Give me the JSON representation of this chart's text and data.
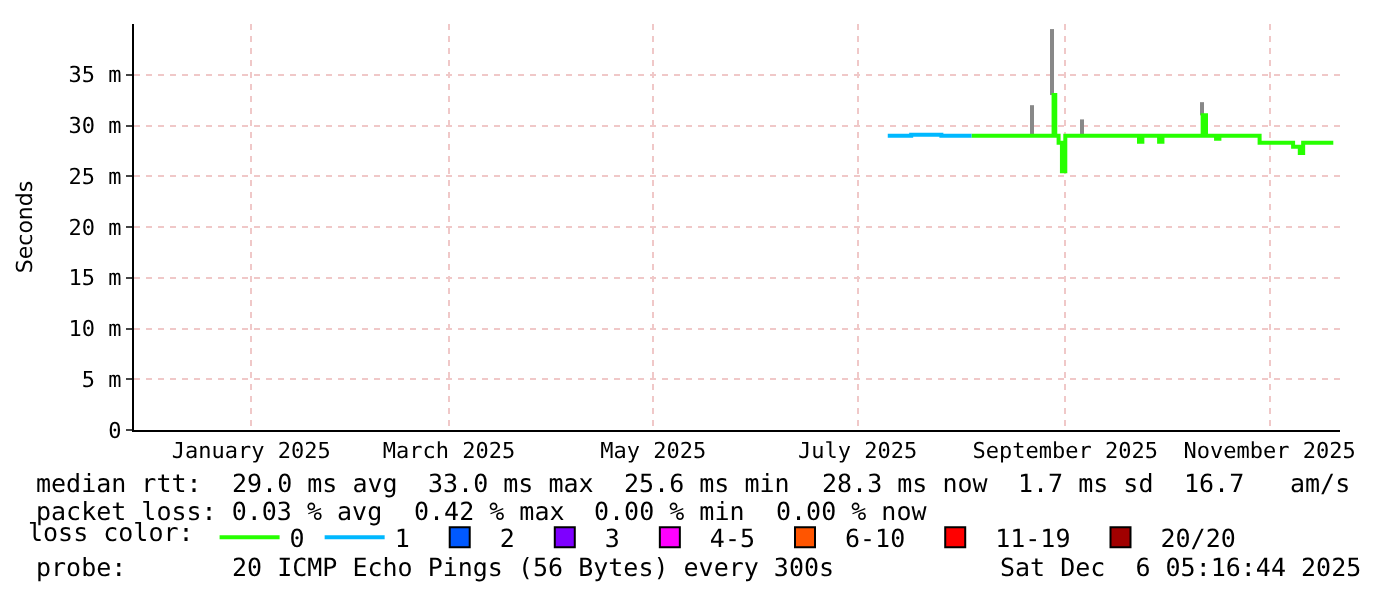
{
  "chart_data": {
    "type": "step",
    "ylabel": "Seconds",
    "xlim": [
      "2024-12-12",
      "2025-12-07"
    ],
    "xticks": [
      {
        "value": "2025-01-16",
        "label": "January 2025"
      },
      {
        "value": "2025-03-16",
        "label": "March 2025"
      },
      {
        "value": "2025-05-16",
        "label": "May 2025"
      },
      {
        "value": "2025-07-16",
        "label": "July 2025"
      },
      {
        "value": "2025-09-16",
        "label": "September 2025"
      },
      {
        "value": "2025-11-16",
        "label": "November 2025"
      }
    ],
    "ylim": [
      0,
      40
    ],
    "yticks": [
      0,
      {
        "value": 5,
        "label": "5 m"
      },
      {
        "value": 10,
        "label": "10 m"
      },
      {
        "value": 15,
        "label": "15 m"
      },
      {
        "value": 20,
        "label": "20 m"
      },
      {
        "value": 25,
        "label": "25 m"
      },
      {
        "value": 30,
        "label": "30 m"
      },
      {
        "value": 35,
        "label": "35 m"
      }
    ],
    "grid": true,
    "legend": "bottom",
    "legend_title": "loss color:",
    "series": [
      {
        "name": "0",
        "color": "#26ff00",
        "x": [
          "2025-08-19",
          "2025-09-12",
          "2025-09-12T12:00",
          "2025-09-13",
          "2025-09-14",
          "2025-09-15",
          "2025-09-16",
          "2025-10-08",
          "2025-10-09",
          "2025-10-14",
          "2025-10-15",
          "2025-10-27",
          "2025-10-28",
          "2025-10-31",
          "2025-11-01",
          "2025-11-13",
          "2025-11-23",
          "2025-11-25",
          "2025-11-26",
          "2025-12-05"
        ],
        "values": [
          29.0,
          29.0,
          33.0,
          29.0,
          28.3,
          25.5,
          29.0,
          28.4,
          29.0,
          28.4,
          29.0,
          31.0,
          29.0,
          28.7,
          29.0,
          28.3,
          27.9,
          27.3,
          28.3,
          28.3
        ]
      },
      {
        "name": "1",
        "color": "#00b8ff",
        "x": [
          "2025-07-25",
          "2025-08-01",
          "2025-08-10",
          "2025-08-19"
        ],
        "values": [
          29.0,
          29.1,
          29.0,
          29.0
        ]
      },
      {
        "name": "2",
        "color": "#0059ff"
      },
      {
        "name": "3",
        "color": "#7e00ff"
      },
      {
        "name": "4-5",
        "color": "#ff00ff"
      },
      {
        "name": "6-10",
        "color": "#ff5500"
      },
      {
        "name": "11-19",
        "color": "#ff0000"
      },
      {
        "name": "20/20",
        "color": "#a10000"
      },
      {
        "type": "bar",
        "color": "#888888",
        "x": [
          "2025-09-06",
          "2025-09-12",
          "2025-09-21",
          "2025-10-27"
        ],
        "base": [
          29.0,
          33.0,
          29.0,
          31.0
        ],
        "values": [
          3.0,
          6.5,
          1.6,
          1.3
        ]
      }
    ],
    "annotations": [
      "median rtt:  29.0 ms avg  33.0 ms max  25.6 ms min  28.3 ms now  1.7 ms sd  16.7   am/s",
      "packet loss: 0.03 % avg  0.42 % max  0.00 % min  0.00 % now",
      "probe:       20 ICMP Echo Pings (56 Bytes) every 300s",
      "Sat Dec  6 05:16:44 2025"
    ]
  }
}
